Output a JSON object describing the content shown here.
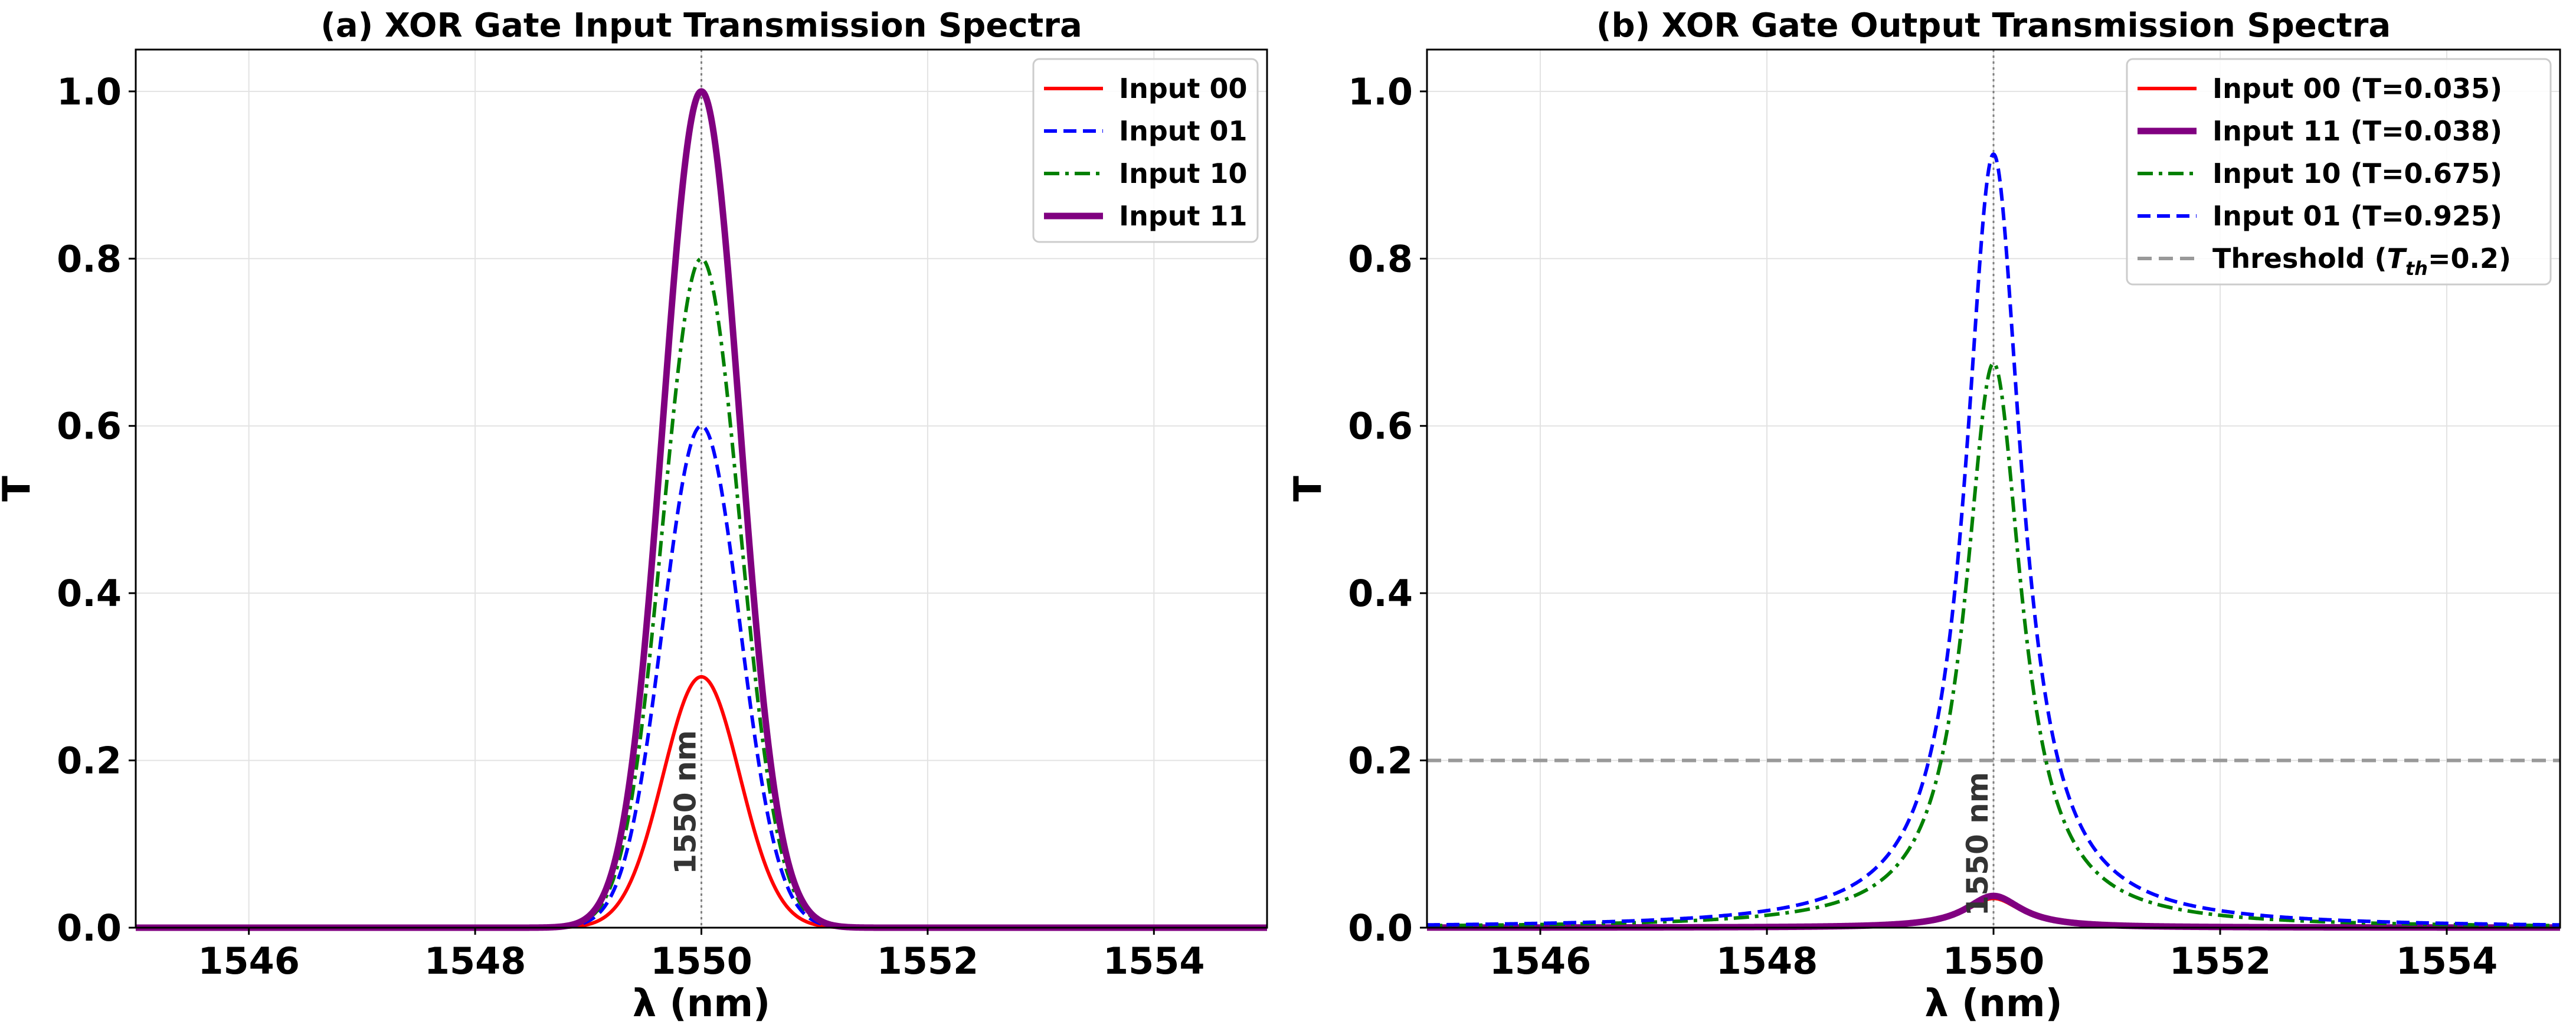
{
  "chart_data": [
    {
      "type": "line",
      "title": "(a) XOR Gate Input Transmission Spectra",
      "xlabel": "λ (nm)",
      "ylabel": "T",
      "xlim": [
        1545,
        1555
      ],
      "ylim": [
        0,
        1.05
      ],
      "xticks": [
        1546,
        1548,
        1550,
        1552,
        1554
      ],
      "yticks": [
        0.0,
        0.2,
        0.4,
        0.6,
        0.8,
        1.0
      ],
      "xtick_labels": [
        "1546",
        "1548",
        "1550",
        "1552",
        "1554"
      ],
      "ytick_labels": [
        "0.0",
        "0.2",
        "0.4",
        "0.6",
        "0.8",
        "1.0"
      ],
      "grid": true,
      "legend_position": "top-right",
      "profile": "gaussian",
      "center": 1550,
      "fwhm_nm": 0.8,
      "series": [
        {
          "name": "Input 00",
          "peak": 0.3,
          "color": "#ff0000",
          "style": "solid",
          "width": "normal"
        },
        {
          "name": "Input 01",
          "peak": 0.6,
          "color": "#0000ff",
          "style": "dashed",
          "width": "normal"
        },
        {
          "name": "Input 10",
          "peak": 0.8,
          "color": "#008000",
          "style": "dashdot",
          "width": "normal"
        },
        {
          "name": "Input 11",
          "peak": 1.0,
          "color": "#800080",
          "style": "solid",
          "width": "thick"
        }
      ],
      "annotations": [
        {
          "text": "1550 nm",
          "x": 1550,
          "y": 0.15,
          "rotation": "vertical"
        }
      ],
      "vline": {
        "x": 1550,
        "color": "#808080",
        "style": "dotted"
      }
    },
    {
      "type": "line",
      "title": "(b) XOR Gate Output Transmission Spectra",
      "xlabel": "λ (nm)",
      "ylabel": "T",
      "xlim": [
        1545,
        1555
      ],
      "ylim": [
        0,
        1.05
      ],
      "xticks": [
        1546,
        1548,
        1550,
        1552,
        1554
      ],
      "yticks": [
        0.0,
        0.2,
        0.4,
        0.6,
        0.8,
        1.0
      ],
      "xtick_labels": [
        "1546",
        "1548",
        "1550",
        "1552",
        "1554"
      ],
      "ytick_labels": [
        "0.0",
        "0.2",
        "0.4",
        "0.6",
        "0.8",
        "1.0"
      ],
      "grid": true,
      "legend_position": "top-right",
      "profile": "lorentzian",
      "center": 1550,
      "fwhm_nm": 0.6,
      "series": [
        {
          "name": "Input 00 (T=0.035)",
          "peak": 0.035,
          "color": "#ff0000",
          "style": "solid",
          "width": "normal"
        },
        {
          "name": "Input 11 (T=0.038)",
          "peak": 0.038,
          "color": "#800080",
          "style": "solid",
          "width": "thick"
        },
        {
          "name": "Input 10 (T=0.675)",
          "peak": 0.675,
          "color": "#008000",
          "style": "dashdot",
          "width": "normal"
        },
        {
          "name": "Input 01 (T=0.925)",
          "peak": 0.925,
          "color": "#0000ff",
          "style": "dashed",
          "width": "normal"
        }
      ],
      "threshold": {
        "name_prefix": "Threshold (",
        "name_symbol": "T",
        "name_sub": "th",
        "name_suffix": "=0.2)",
        "y": 0.2,
        "color": "#999999",
        "style": "dashed"
      },
      "annotations": [
        {
          "text": "1550 nm",
          "x": 1550,
          "y": 0.1,
          "rotation": "vertical"
        }
      ],
      "vline": {
        "x": 1550,
        "color": "#808080",
        "style": "dotted"
      }
    }
  ]
}
